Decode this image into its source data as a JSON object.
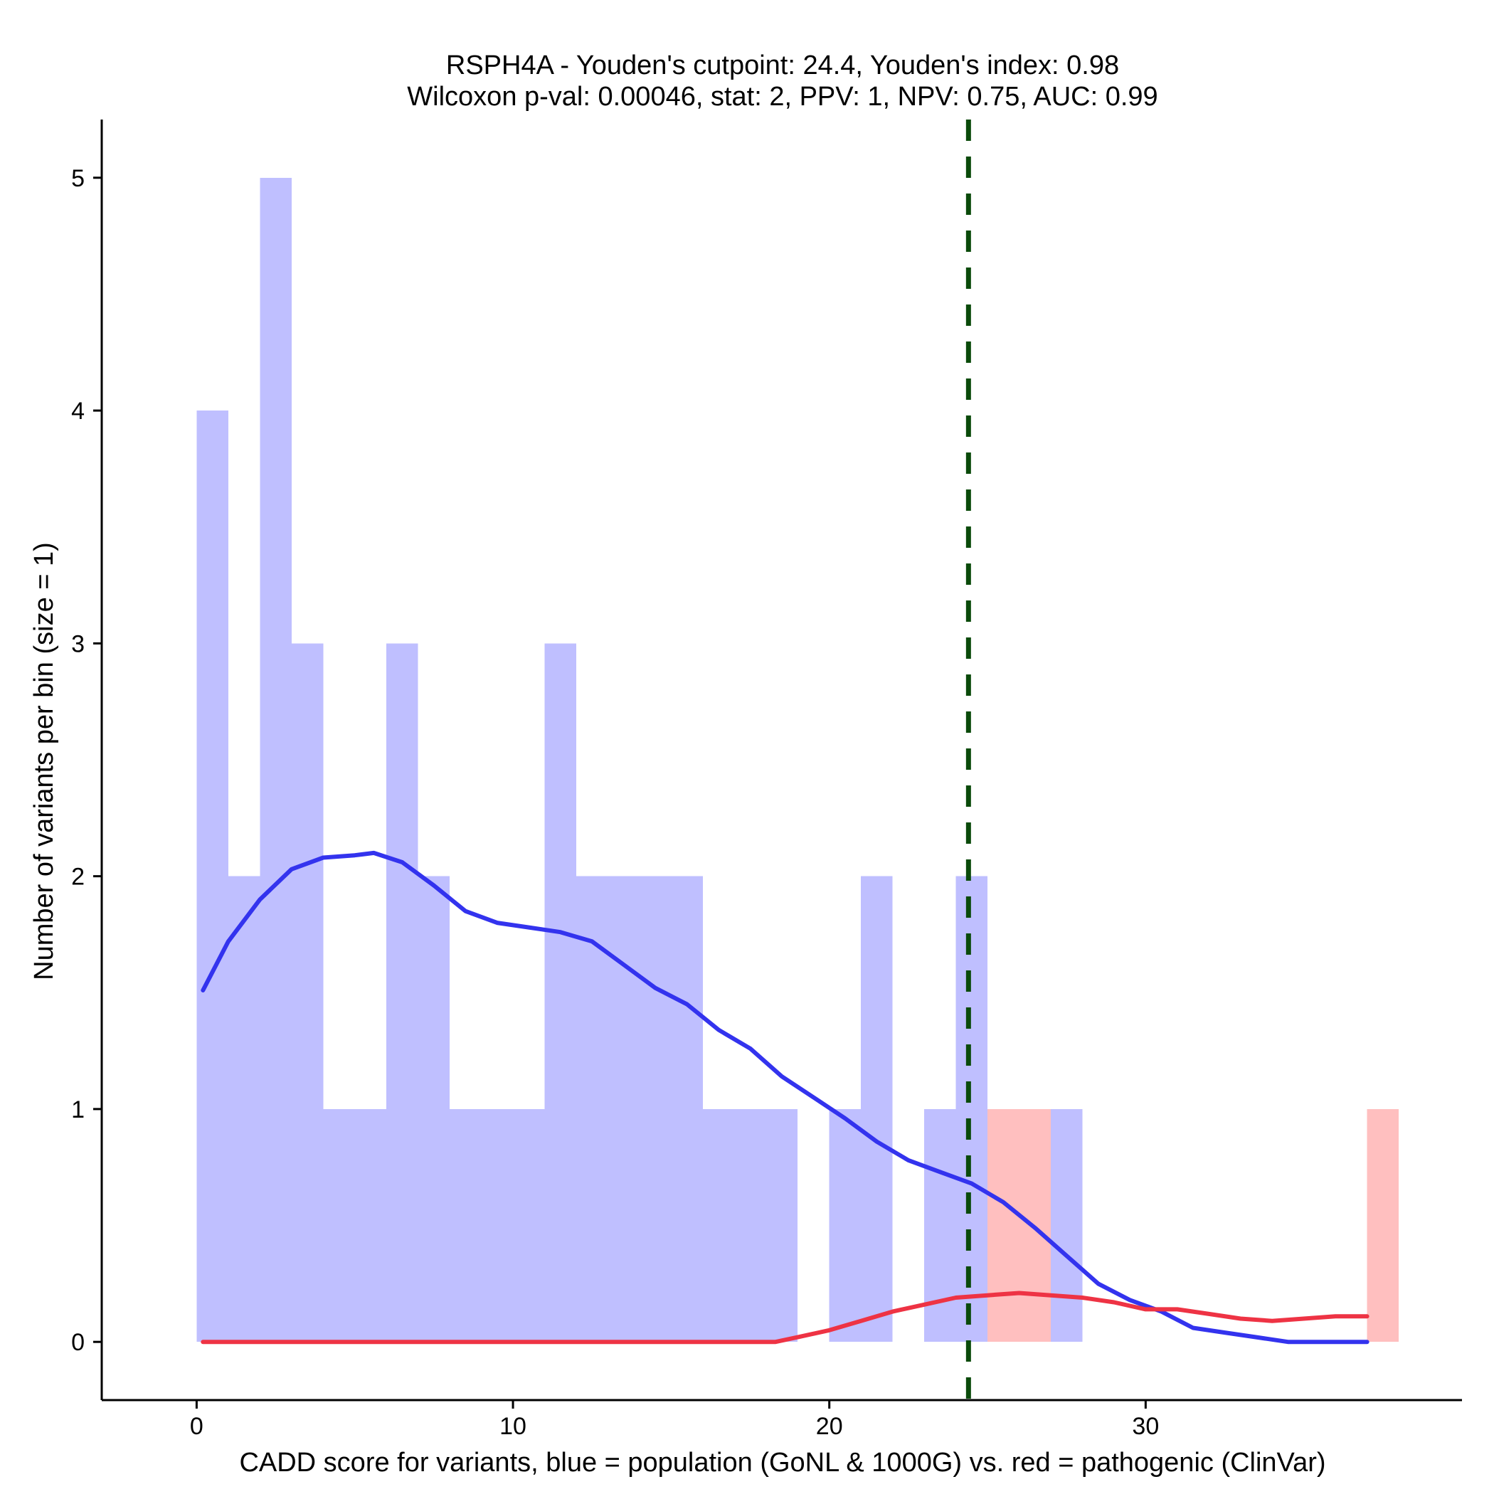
{
  "chart_data": {
    "type": "histogram",
    "title": "RSPH4A - Youden's cutpoint: 24.4, Youden's index: 0.98",
    "subtitle": "Wilcoxon p-val: 0.00046, stat: 2, PPV: 1, NPV: 0.75, AUC: 0.99",
    "xlabel": "CADD score for variants, blue = population (GoNL & 1000G) vs. red = pathogenic (ClinVar)",
    "ylabel": "Number of variants per bin (size = 1)",
    "xlim": [
      -3,
      40
    ],
    "ylim": [
      -0.25,
      5.25
    ],
    "x_ticks": [
      0,
      10,
      20,
      30
    ],
    "y_ticks": [
      0,
      1,
      2,
      3,
      4,
      5
    ],
    "cutpoint": 24.4,
    "colors": {
      "population_fill": "#bfbfff",
      "pathogenic_fill": "#ffbfbf",
      "population_line": "#3333ee",
      "pathogenic_line": "#ee3344",
      "cutpoint_line": "#0a4a0a"
    },
    "series": [
      {
        "name": "population (GoNL & 1000G)",
        "bins": [
          {
            "x0": 0,
            "x1": 1,
            "count": 4
          },
          {
            "x0": 1,
            "x1": 2,
            "count": 2
          },
          {
            "x0": 2,
            "x1": 3,
            "count": 5
          },
          {
            "x0": 3,
            "x1": 4,
            "count": 3
          },
          {
            "x0": 4,
            "x1": 5,
            "count": 1
          },
          {
            "x0": 5,
            "x1": 6,
            "count": 1
          },
          {
            "x0": 6,
            "x1": 7,
            "count": 3
          },
          {
            "x0": 7,
            "x1": 8,
            "count": 2
          },
          {
            "x0": 8,
            "x1": 9,
            "count": 1
          },
          {
            "x0": 9,
            "x1": 10,
            "count": 1
          },
          {
            "x0": 10,
            "x1": 11,
            "count": 1
          },
          {
            "x0": 11,
            "x1": 12,
            "count": 3
          },
          {
            "x0": 12,
            "x1": 13,
            "count": 2
          },
          {
            "x0": 13,
            "x1": 14,
            "count": 2
          },
          {
            "x0": 14,
            "x1": 15,
            "count": 2
          },
          {
            "x0": 15,
            "x1": 16,
            "count": 2
          },
          {
            "x0": 16,
            "x1": 17,
            "count": 1
          },
          {
            "x0": 17,
            "x1": 18,
            "count": 1
          },
          {
            "x0": 18,
            "x1": 19,
            "count": 1
          },
          {
            "x0": 20,
            "x1": 21,
            "count": 1
          },
          {
            "x0": 21,
            "x1": 22,
            "count": 2
          },
          {
            "x0": 23,
            "x1": 24,
            "count": 1
          },
          {
            "x0": 24,
            "x1": 25,
            "count": 2
          },
          {
            "x0": 27,
            "x1": 28,
            "count": 1
          }
        ]
      },
      {
        "name": "pathogenic (ClinVar)",
        "bins": [
          {
            "x0": 25,
            "x1": 26,
            "count": 1
          },
          {
            "x0": 26,
            "x1": 27,
            "count": 1
          },
          {
            "x0": 37,
            "x1": 38,
            "count": 1
          }
        ]
      }
    ],
    "density": [
      {
        "name": "population density",
        "points": [
          [
            0.2,
            1.51
          ],
          [
            1,
            1.72
          ],
          [
            2,
            1.9
          ],
          [
            3,
            2.03
          ],
          [
            4,
            2.08
          ],
          [
            5,
            2.09
          ],
          [
            5.6,
            2.1
          ],
          [
            6.5,
            2.06
          ],
          [
            7.5,
            1.96
          ],
          [
            8.5,
            1.85
          ],
          [
            9.5,
            1.8
          ],
          [
            10.5,
            1.78
          ],
          [
            11.5,
            1.76
          ],
          [
            12.5,
            1.72
          ],
          [
            13.5,
            1.62
          ],
          [
            14.5,
            1.52
          ],
          [
            15.5,
            1.45
          ],
          [
            16.5,
            1.34
          ],
          [
            17.5,
            1.26
          ],
          [
            18.5,
            1.14
          ],
          [
            19.5,
            1.05
          ],
          [
            20.5,
            0.96
          ],
          [
            21.5,
            0.86
          ],
          [
            22.5,
            0.78
          ],
          [
            23.5,
            0.73
          ],
          [
            24.5,
            0.68
          ],
          [
            25.5,
            0.6
          ],
          [
            26.5,
            0.49
          ],
          [
            27.5,
            0.37
          ],
          [
            28.5,
            0.25
          ],
          [
            29.5,
            0.18
          ],
          [
            30.5,
            0.13
          ],
          [
            31.5,
            0.06
          ],
          [
            32.5,
            0.04
          ],
          [
            33.5,
            0.02
          ],
          [
            34.5,
            0
          ],
          [
            36,
            0
          ],
          [
            37,
            0
          ]
        ]
      },
      {
        "name": "pathogenic density",
        "points": [
          [
            0.2,
            0
          ],
          [
            5,
            0
          ],
          [
            10,
            0
          ],
          [
            15,
            0
          ],
          [
            18.3,
            0
          ],
          [
            19,
            0.02
          ],
          [
            20,
            0.05
          ],
          [
            21,
            0.09
          ],
          [
            22,
            0.13
          ],
          [
            23,
            0.16
          ],
          [
            24,
            0.19
          ],
          [
            25,
            0.2
          ],
          [
            26,
            0.21
          ],
          [
            27,
            0.2
          ],
          [
            28,
            0.19
          ],
          [
            29,
            0.17
          ],
          [
            30,
            0.14
          ],
          [
            31,
            0.14
          ],
          [
            32,
            0.12
          ],
          [
            33,
            0.1
          ],
          [
            34,
            0.09
          ],
          [
            35,
            0.1
          ],
          [
            36,
            0.11
          ],
          [
            37,
            0.11
          ]
        ]
      }
    ]
  }
}
